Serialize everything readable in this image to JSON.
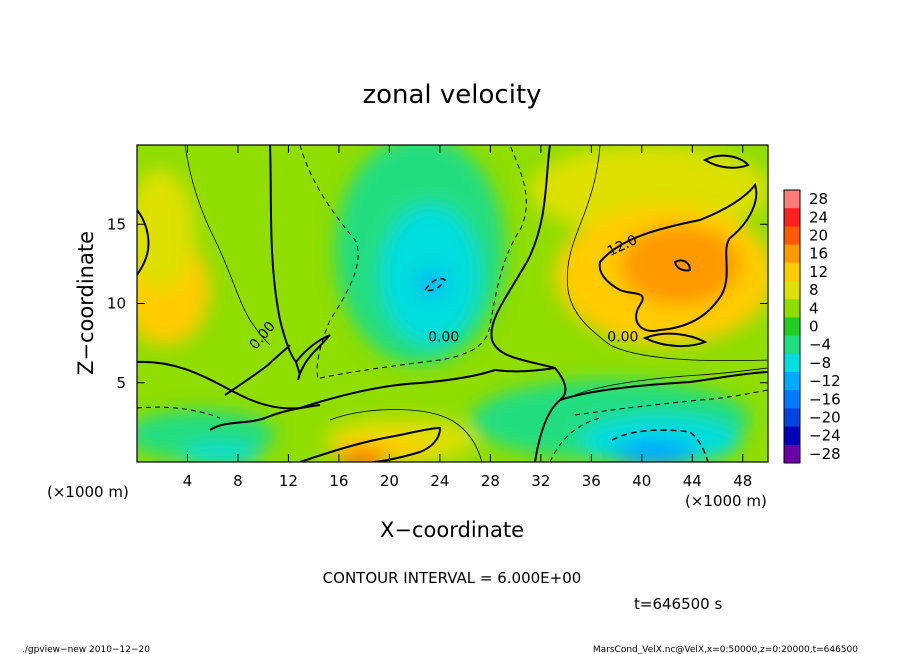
{
  "chart_data": {
    "type": "heatmap",
    "title": "zonal velocity",
    "xlabel": "X−coordinate",
    "ylabel": "Z−coordinate",
    "x_unit_label": "(×1000 m)",
    "y_unit_label": "(×1000 m)",
    "xlim": [
      0,
      50
    ],
    "ylim": [
      0,
      20
    ],
    "x_ticks": [
      4,
      8,
      12,
      16,
      20,
      24,
      28,
      32,
      36,
      40,
      44,
      48
    ],
    "x_tick_labels": [
      "4",
      "8",
      "12",
      "16",
      "20",
      "24",
      "28",
      "32",
      "36",
      "40",
      "44",
      "48"
    ],
    "y_ticks": [
      5,
      10,
      15
    ],
    "y_tick_labels": [
      "5",
      "10",
      "15"
    ],
    "colorbar": {
      "levels": [
        28,
        24,
        20,
        16,
        12,
        8,
        4,
        0,
        -4,
        -8,
        -12,
        -16,
        -20,
        -24,
        -28
      ],
      "labels": [
        "28",
        "24",
        "20",
        "16",
        "12",
        "8",
        "4",
        "0",
        "−4",
        "−8",
        "−12",
        "−16",
        "−20",
        "−24",
        "−28"
      ],
      "colors": [
        "#ff7a7a",
        "#ff2020",
        "#ff5a00",
        "#ff9900",
        "#ffcc00",
        "#dde000",
        "#90dd00",
        "#22cc22",
        "#20dd80",
        "#00dddd",
        "#00aaff",
        "#0077ff",
        "#0044dd",
        "#0000bb",
        "#6a00a8"
      ]
    },
    "contour_labels": [
      {
        "text": "0.00",
        "x": 24.3,
        "z": 7.6,
        "angle": 0
      },
      {
        "text": "0.00",
        "x": 38.5,
        "z": 7.6,
        "angle": 0
      },
      {
        "text": "0.00",
        "x": 10.2,
        "z": 7.8,
        "angle": -50
      },
      {
        "text": "12.0",
        "x": 38.6,
        "z": 13.4,
        "angle": -25
      }
    ],
    "features": [
      {
        "x": 19.5,
        "z": 1.0,
        "value": 24
      },
      {
        "x": 42.5,
        "z": 12.5,
        "value": 18
      },
      {
        "x": 22.8,
        "z": 11.5,
        "value": -10
      },
      {
        "x": 41.5,
        "z": 0.8,
        "value": -14
      },
      {
        "x": 6.5,
        "z": 1.5,
        "value": -9
      }
    ]
  },
  "annotations": {
    "contour_interval": "CONTOUR INTERVAL = 6.000E+00",
    "time": "t=646500 s",
    "footer_left": "./gpview−new  2010−12−20",
    "footer_right": "MarsCond_VelX.nc@VelX,x=0:50000,z=0:20000,t=646500"
  }
}
